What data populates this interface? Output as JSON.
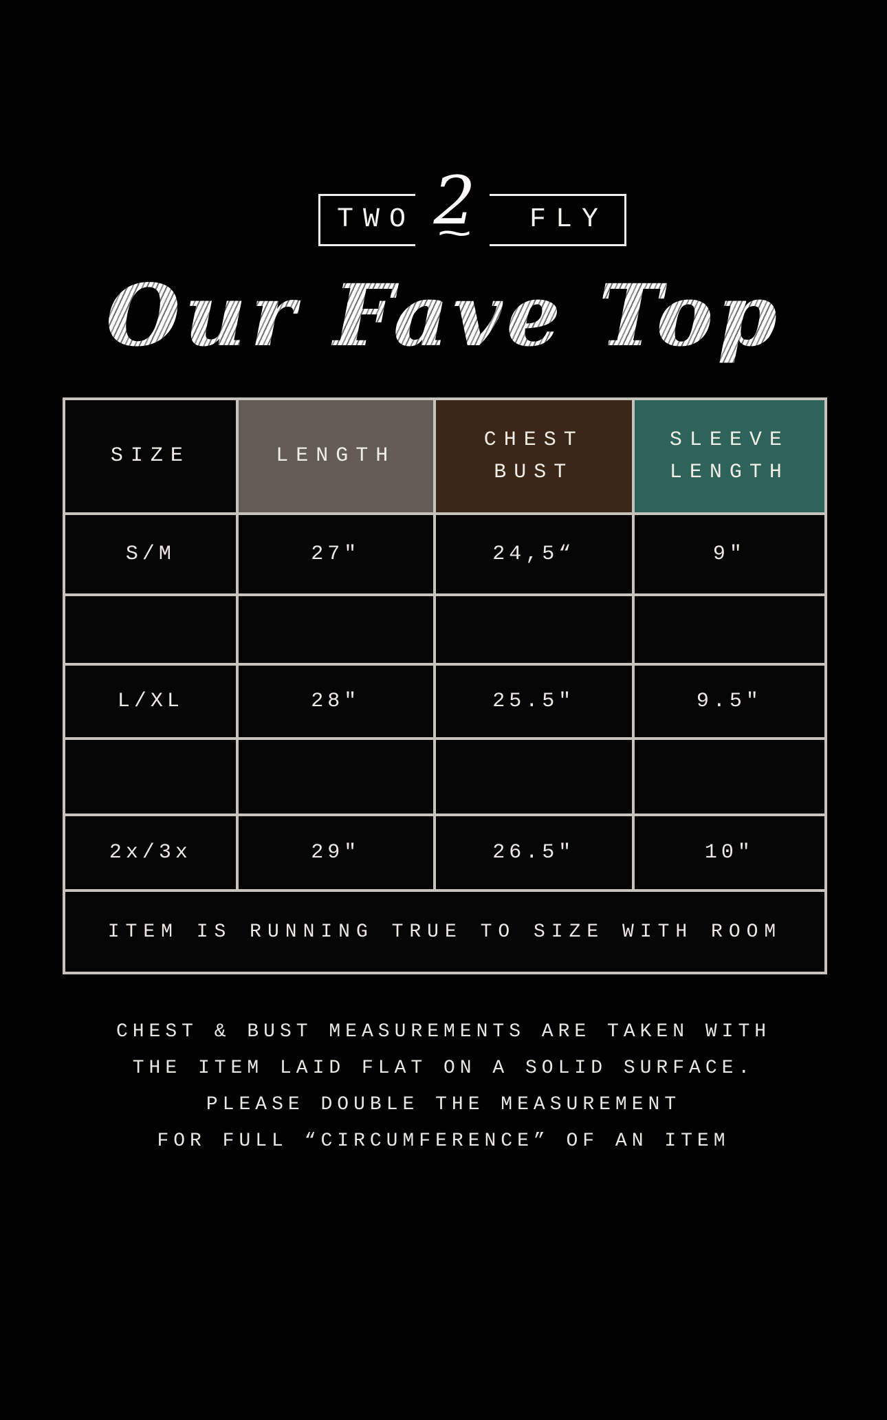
{
  "brand": {
    "word_left": "TWO",
    "numeral": "2",
    "word_right": "FLY",
    "squiggle": "~"
  },
  "title": {
    "text": "Our Fave Top"
  },
  "colors": {
    "background": "#000000",
    "table_border": "#c6c3bd",
    "header_size_bg": "#050505",
    "header_length_bg": "#635c54",
    "header_chest_bg": "#3b2717",
    "header_sleeve_bg": "#2d6359",
    "text": "#eae8e3"
  },
  "table": {
    "headers": [
      {
        "lines": [
          "SIZE"
        ]
      },
      {
        "lines": [
          "LENGTH"
        ]
      },
      {
        "lines": [
          "CHEST",
          "BUST"
        ]
      },
      {
        "lines": [
          "SLEEVE",
          "LENGTH"
        ]
      }
    ],
    "rows": [
      {
        "size": "S/M",
        "length": "27\"",
        "chest_bust": "24,5“",
        "sleeve_length": "9\""
      },
      {
        "size": "",
        "length": "",
        "chest_bust": "",
        "sleeve_length": ""
      },
      {
        "size": "L/XL",
        "length": "28\"",
        "chest_bust": "25.5\"",
        "sleeve_length": "9.5\""
      },
      {
        "size": "",
        "length": "",
        "chest_bust": "",
        "sleeve_length": ""
      },
      {
        "size": "2x/3x",
        "length": "29\"",
        "chest_bust": "26.5\"",
        "sleeve_length": "10\""
      }
    ],
    "note": "ITEM IS RUNNING TRUE TO SIZE WITH ROOM"
  },
  "footer": {
    "lines": [
      "CHEST & BUST MEASUREMENTS ARE TAKEN WITH",
      "THE ITEM LAID FLAT ON A SOLID SURFACE.",
      "PLEASE DOUBLE THE MEASUREMENT",
      "FOR FULL “CIRCUMFERENCE” OF AN ITEM"
    ]
  }
}
